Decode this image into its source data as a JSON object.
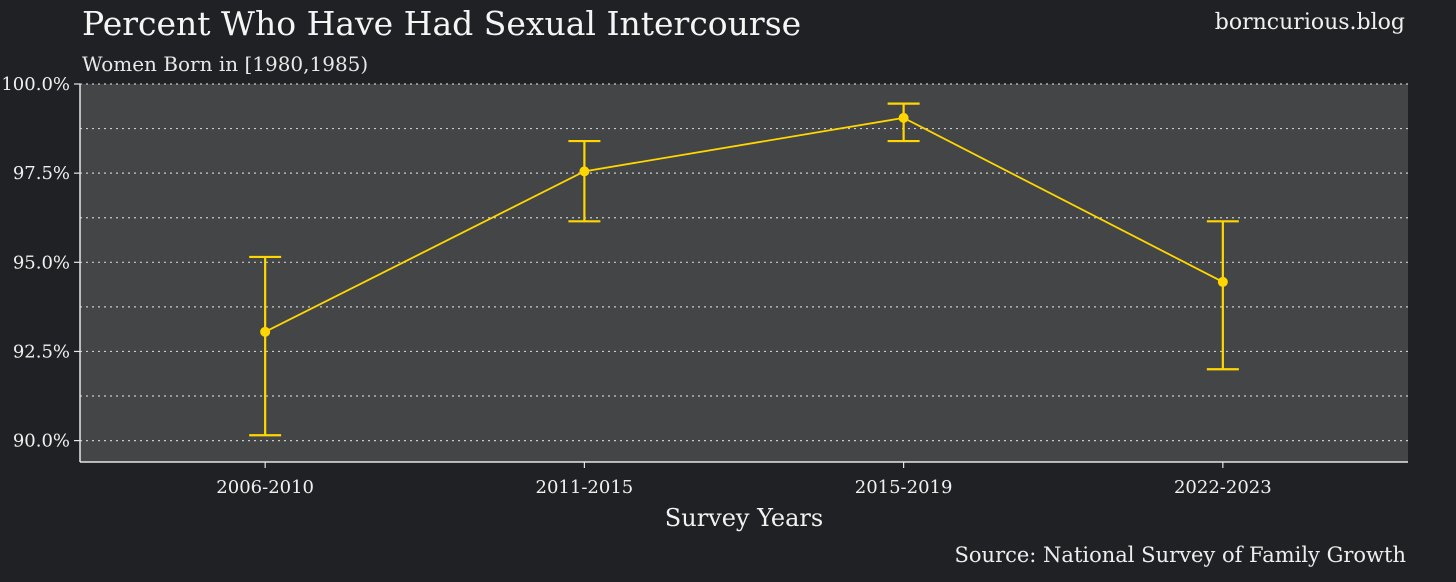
{
  "header": {
    "title": "Percent Who Have Had Sexual Intercourse",
    "subtitle": "Women Born in [1980,1985)",
    "watermark": "borncurious.blog"
  },
  "footer": {
    "caption": "Source: National Survey of Family Growth"
  },
  "colors": {
    "background": "#202124",
    "panel": "#444547",
    "series": "#ffd700",
    "grid": "#d9d9d9"
  },
  "chart_data": {
    "type": "line",
    "title": "Percent Who Have Had Sexual Intercourse",
    "subtitle": "Women Born in [1980,1985)",
    "xlabel": "Survey Years",
    "ylabel": "",
    "categories": [
      "2006-2010",
      "2011-2015",
      "2015-2019",
      "2022-2023"
    ],
    "y_ticks": [
      90.0,
      92.5,
      95.0,
      97.5,
      100.0
    ],
    "y_tick_labels": [
      "90.0%",
      "92.5%",
      "95.0%",
      "97.5%",
      "100.0%"
    ],
    "ylim": [
      89.4,
      100.0
    ],
    "grid": true,
    "legend": "none",
    "series": [
      {
        "values": [
          93.05,
          97.55,
          99.05,
          94.45
        ],
        "error_low": [
          90.15,
          96.15,
          98.4,
          92.0
        ],
        "error_high": [
          95.15,
          98.4,
          99.45,
          96.15
        ]
      }
    ]
  }
}
